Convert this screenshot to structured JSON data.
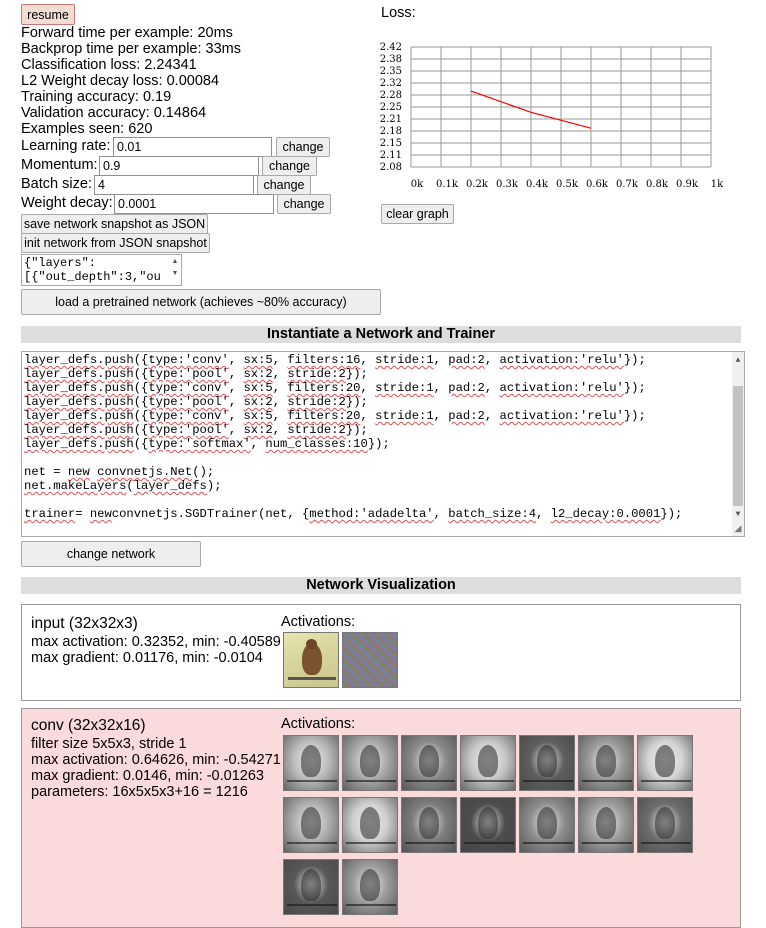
{
  "controls": {
    "resume_label": "resume",
    "change_label": "change",
    "save_json_label": "save network snapshot as JSON",
    "init_json_label": "init network from JSON snapshot",
    "json_snapshot_text": "{\"layers\":\n[{\"out_depth\":3,\"ou",
    "load_pretrained_label": "load a pretrained network (achieves ~80% accuracy)"
  },
  "stats": [
    "Forward time per example: 20ms",
    "Backprop time per example: 33ms",
    "Classification loss: 2.24341",
    "L2 Weight decay loss: 0.00084",
    "Training accuracy: 0.19",
    "Validation accuracy: 0.14864",
    "Examples seen: 620"
  ],
  "params": {
    "learning_rate": {
      "label": "Learning rate:",
      "value": "0.01"
    },
    "momentum": {
      "label": "Momentum:",
      "value": "0.9"
    },
    "batch_size": {
      "label": "Batch size:",
      "value": "4"
    },
    "weight_decay": {
      "label": "Weight decay:",
      "value": "0.0001"
    }
  },
  "loss_panel": {
    "title": "Loss:",
    "clear_label": "clear graph"
  },
  "chart_data": {
    "type": "line",
    "title": "",
    "xlabel": "",
    "ylabel": "",
    "y_ticks": [
      "2.42",
      "2.38",
      "2.35",
      "2.32",
      "2.28",
      "2.25",
      "2.21",
      "2.18",
      "2.15",
      "2.11",
      "2.08"
    ],
    "x_ticks": [
      "0k",
      "0.1k",
      "0.2k",
      "0.3k",
      "0.4k",
      "0.5k",
      "0.6k",
      "0.7k",
      "0.8k",
      "0.9k",
      "1k"
    ],
    "xlim": [
      0,
      1000
    ],
    "ylim": [
      2.08,
      2.42
    ],
    "grid": true,
    "line_color": "#ff0000",
    "series": [
      {
        "x": [
          200,
          400,
          600
        ],
        "y": [
          2.295,
          2.235,
          2.19
        ]
      }
    ]
  },
  "instantiate": {
    "title": "Instantiate a Network and Trainer",
    "code_lines": [
      [
        [
          "squig",
          "layer_defs.push"
        ],
        [
          "",
          "({"
        ],
        [
          "squig",
          "type:'conv'"
        ],
        [
          "",
          ", "
        ],
        [
          "squig",
          "sx:5"
        ],
        [
          "",
          ", "
        ],
        [
          "squig",
          "filters:16"
        ],
        [
          "",
          ", "
        ],
        [
          "squig",
          "stride:1"
        ],
        [
          "",
          ", "
        ],
        [
          "squig",
          "pad:2"
        ],
        [
          "",
          ", "
        ],
        [
          "squig",
          "activation:'relu'"
        ],
        [
          "",
          "});"
        ]
      ],
      [
        [
          "squig",
          "layer_defs.push"
        ],
        [
          "",
          "({"
        ],
        [
          "squig",
          "type:'pool'"
        ],
        [
          "",
          ", "
        ],
        [
          "squig",
          "sx:2"
        ],
        [
          "",
          ", "
        ],
        [
          "squig",
          "stride:2"
        ],
        [
          "",
          "});"
        ]
      ],
      [
        [
          "squig",
          "layer_defs.push"
        ],
        [
          "",
          "({"
        ],
        [
          "squig",
          "type:'conv'"
        ],
        [
          "",
          ", "
        ],
        [
          "squig",
          "sx:5"
        ],
        [
          "",
          ", "
        ],
        [
          "squig",
          "filters:20"
        ],
        [
          "",
          ", "
        ],
        [
          "squig",
          "stride:1"
        ],
        [
          "",
          ", "
        ],
        [
          "squig",
          "pad:2"
        ],
        [
          "",
          ", "
        ],
        [
          "squig",
          "activation:'relu'"
        ],
        [
          "",
          "});"
        ]
      ],
      [
        [
          "squig",
          "layer_defs.push"
        ],
        [
          "",
          "({"
        ],
        [
          "squig",
          "type:'pool'"
        ],
        [
          "",
          ", "
        ],
        [
          "squig",
          "sx:2"
        ],
        [
          "",
          ", "
        ],
        [
          "squig",
          "stride:2"
        ],
        [
          "",
          "});"
        ]
      ],
      [
        [
          "squig",
          "layer_defs.push"
        ],
        [
          "",
          "({"
        ],
        [
          "squig",
          "type:'conv'"
        ],
        [
          "",
          ", "
        ],
        [
          "squig",
          "sx:5"
        ],
        [
          "",
          ", "
        ],
        [
          "squig",
          "filters:20"
        ],
        [
          "",
          ", "
        ],
        [
          "squig",
          "stride:1"
        ],
        [
          "",
          ", "
        ],
        [
          "squig",
          "pad:2"
        ],
        [
          "",
          ", "
        ],
        [
          "squig",
          "activation:'relu'"
        ],
        [
          "",
          "});"
        ]
      ],
      [
        [
          "squig",
          "layer_defs.push"
        ],
        [
          "",
          "({"
        ],
        [
          "squig",
          "type:'pool'"
        ],
        [
          "",
          ", "
        ],
        [
          "squig",
          "sx:2"
        ],
        [
          "",
          ", "
        ],
        [
          "squig",
          "stride:2"
        ],
        [
          "",
          "});"
        ]
      ],
      [
        [
          "squig",
          "layer_defs.push"
        ],
        [
          "",
          "({"
        ],
        [
          "squig",
          "type:'softmax'"
        ],
        [
          "",
          ", "
        ],
        [
          "squig",
          "num_classes:10"
        ],
        [
          "",
          "});"
        ]
      ],
      [
        [
          "",
          ""
        ]
      ],
      [
        [
          "",
          "net = "
        ],
        [
          "squig",
          "new"
        ],
        [
          "",
          " "
        ],
        [
          "squig",
          "convnetjs.Net"
        ],
        [
          "",
          "();"
        ]
      ],
      [
        [
          "squig",
          "net.makeLayers"
        ],
        [
          "",
          "("
        ],
        [
          "squig",
          "layer_defs"
        ],
        [
          "",
          ");"
        ]
      ],
      [
        [
          "",
          ""
        ]
      ],
      [
        [
          "squig",
          "trainer"
        ],
        [
          "",
          "",
          " "
        ],
        [
          "",
          ""
        ],
        [
          "",
          ""
        ],
        [
          "",
          ""
        ],
        [
          "",
          "= "
        ],
        [
          "squig",
          "new"
        ],
        [
          "",
          "",
          " "
        ],
        [
          "",
          ""
        ],
        [
          "",
          ""
        ],
        [
          "",
          "convnetjs.SGDTrainer(net, {"
        ],
        [
          "squig",
          "method:'adadelta'"
        ],
        [
          "",
          ", "
        ],
        [
          "squig",
          "batch_size:4"
        ],
        [
          "",
          ", "
        ],
        [
          "squig",
          "l2_decay:0.0001"
        ],
        [
          "",
          "});"
        ]
      ]
    ],
    "change_network_label": "change network"
  },
  "visualization": {
    "title": "Network Visualization",
    "activations_label": "Activations:",
    "input_layer": {
      "title": "input (32x32x3)",
      "lines": [
        "max activation: 0.32352, min: -0.40589",
        "max gradient: 0.01176, min: -0.0104"
      ]
    },
    "conv_layer": {
      "title": "conv (32x32x16)",
      "lines": [
        "filter size 5x5x3, stride 1",
        "max activation: 0.64626, min: -0.54271",
        "max gradient: 0.0146, min: -0.01263",
        "parameters: 16x5x5x3+16 = 1216"
      ]
    }
  }
}
